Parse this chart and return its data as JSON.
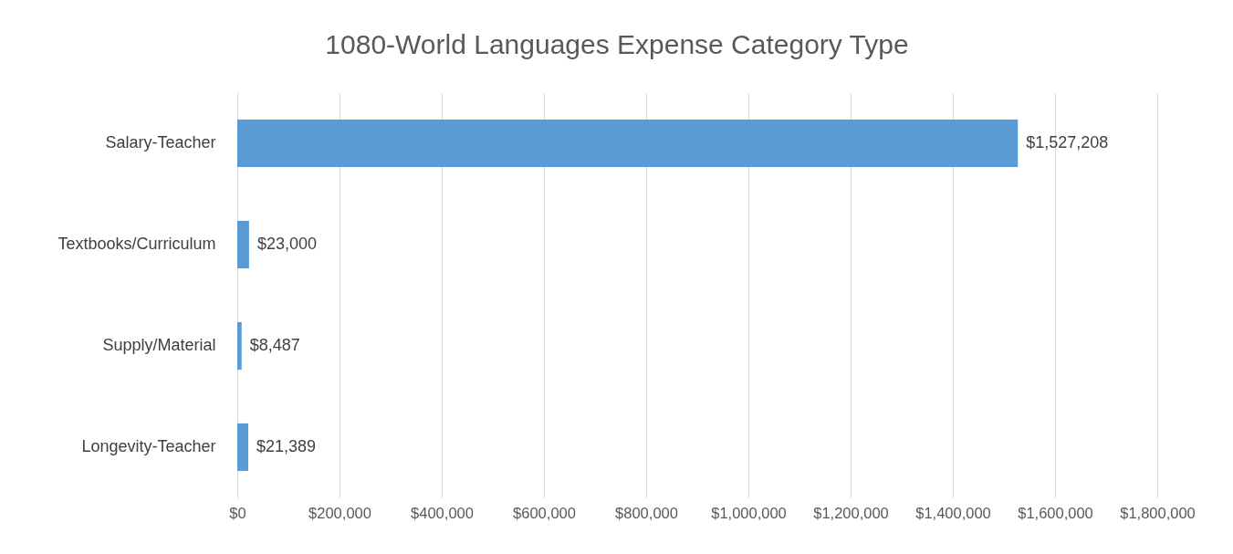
{
  "chart_data": {
    "type": "bar",
    "orientation": "horizontal",
    "title": "1080-World Languages Expense Category Type",
    "categories": [
      "Salary-Teacher",
      "Textbooks/Curriculum",
      "Supply/Material",
      "Longevity-Teacher"
    ],
    "values": [
      1527208,
      23000,
      8487,
      21389
    ],
    "value_labels": [
      "$1,527,208",
      "$23,000",
      "$8,487",
      "$21,389"
    ],
    "color": "#5b9bd5",
    "xlim": [
      0,
      1800000
    ],
    "xticks": [
      {
        "value": 0,
        "label": "$0"
      },
      {
        "value": 200000,
        "label": "$200,000"
      },
      {
        "value": 400000,
        "label": "$400,000"
      },
      {
        "value": 600000,
        "label": "$600,000"
      },
      {
        "value": 800000,
        "label": "$800,000"
      },
      {
        "value": 1000000,
        "label": "$1,000,000"
      },
      {
        "value": 1200000,
        "label": "$1,200,000"
      },
      {
        "value": 1400000,
        "label": "$1,400,000"
      },
      {
        "value": 1600000,
        "label": "$1,600,000"
      },
      {
        "value": 1800000,
        "label": "$1,800,000"
      }
    ],
    "grid": "x"
  }
}
